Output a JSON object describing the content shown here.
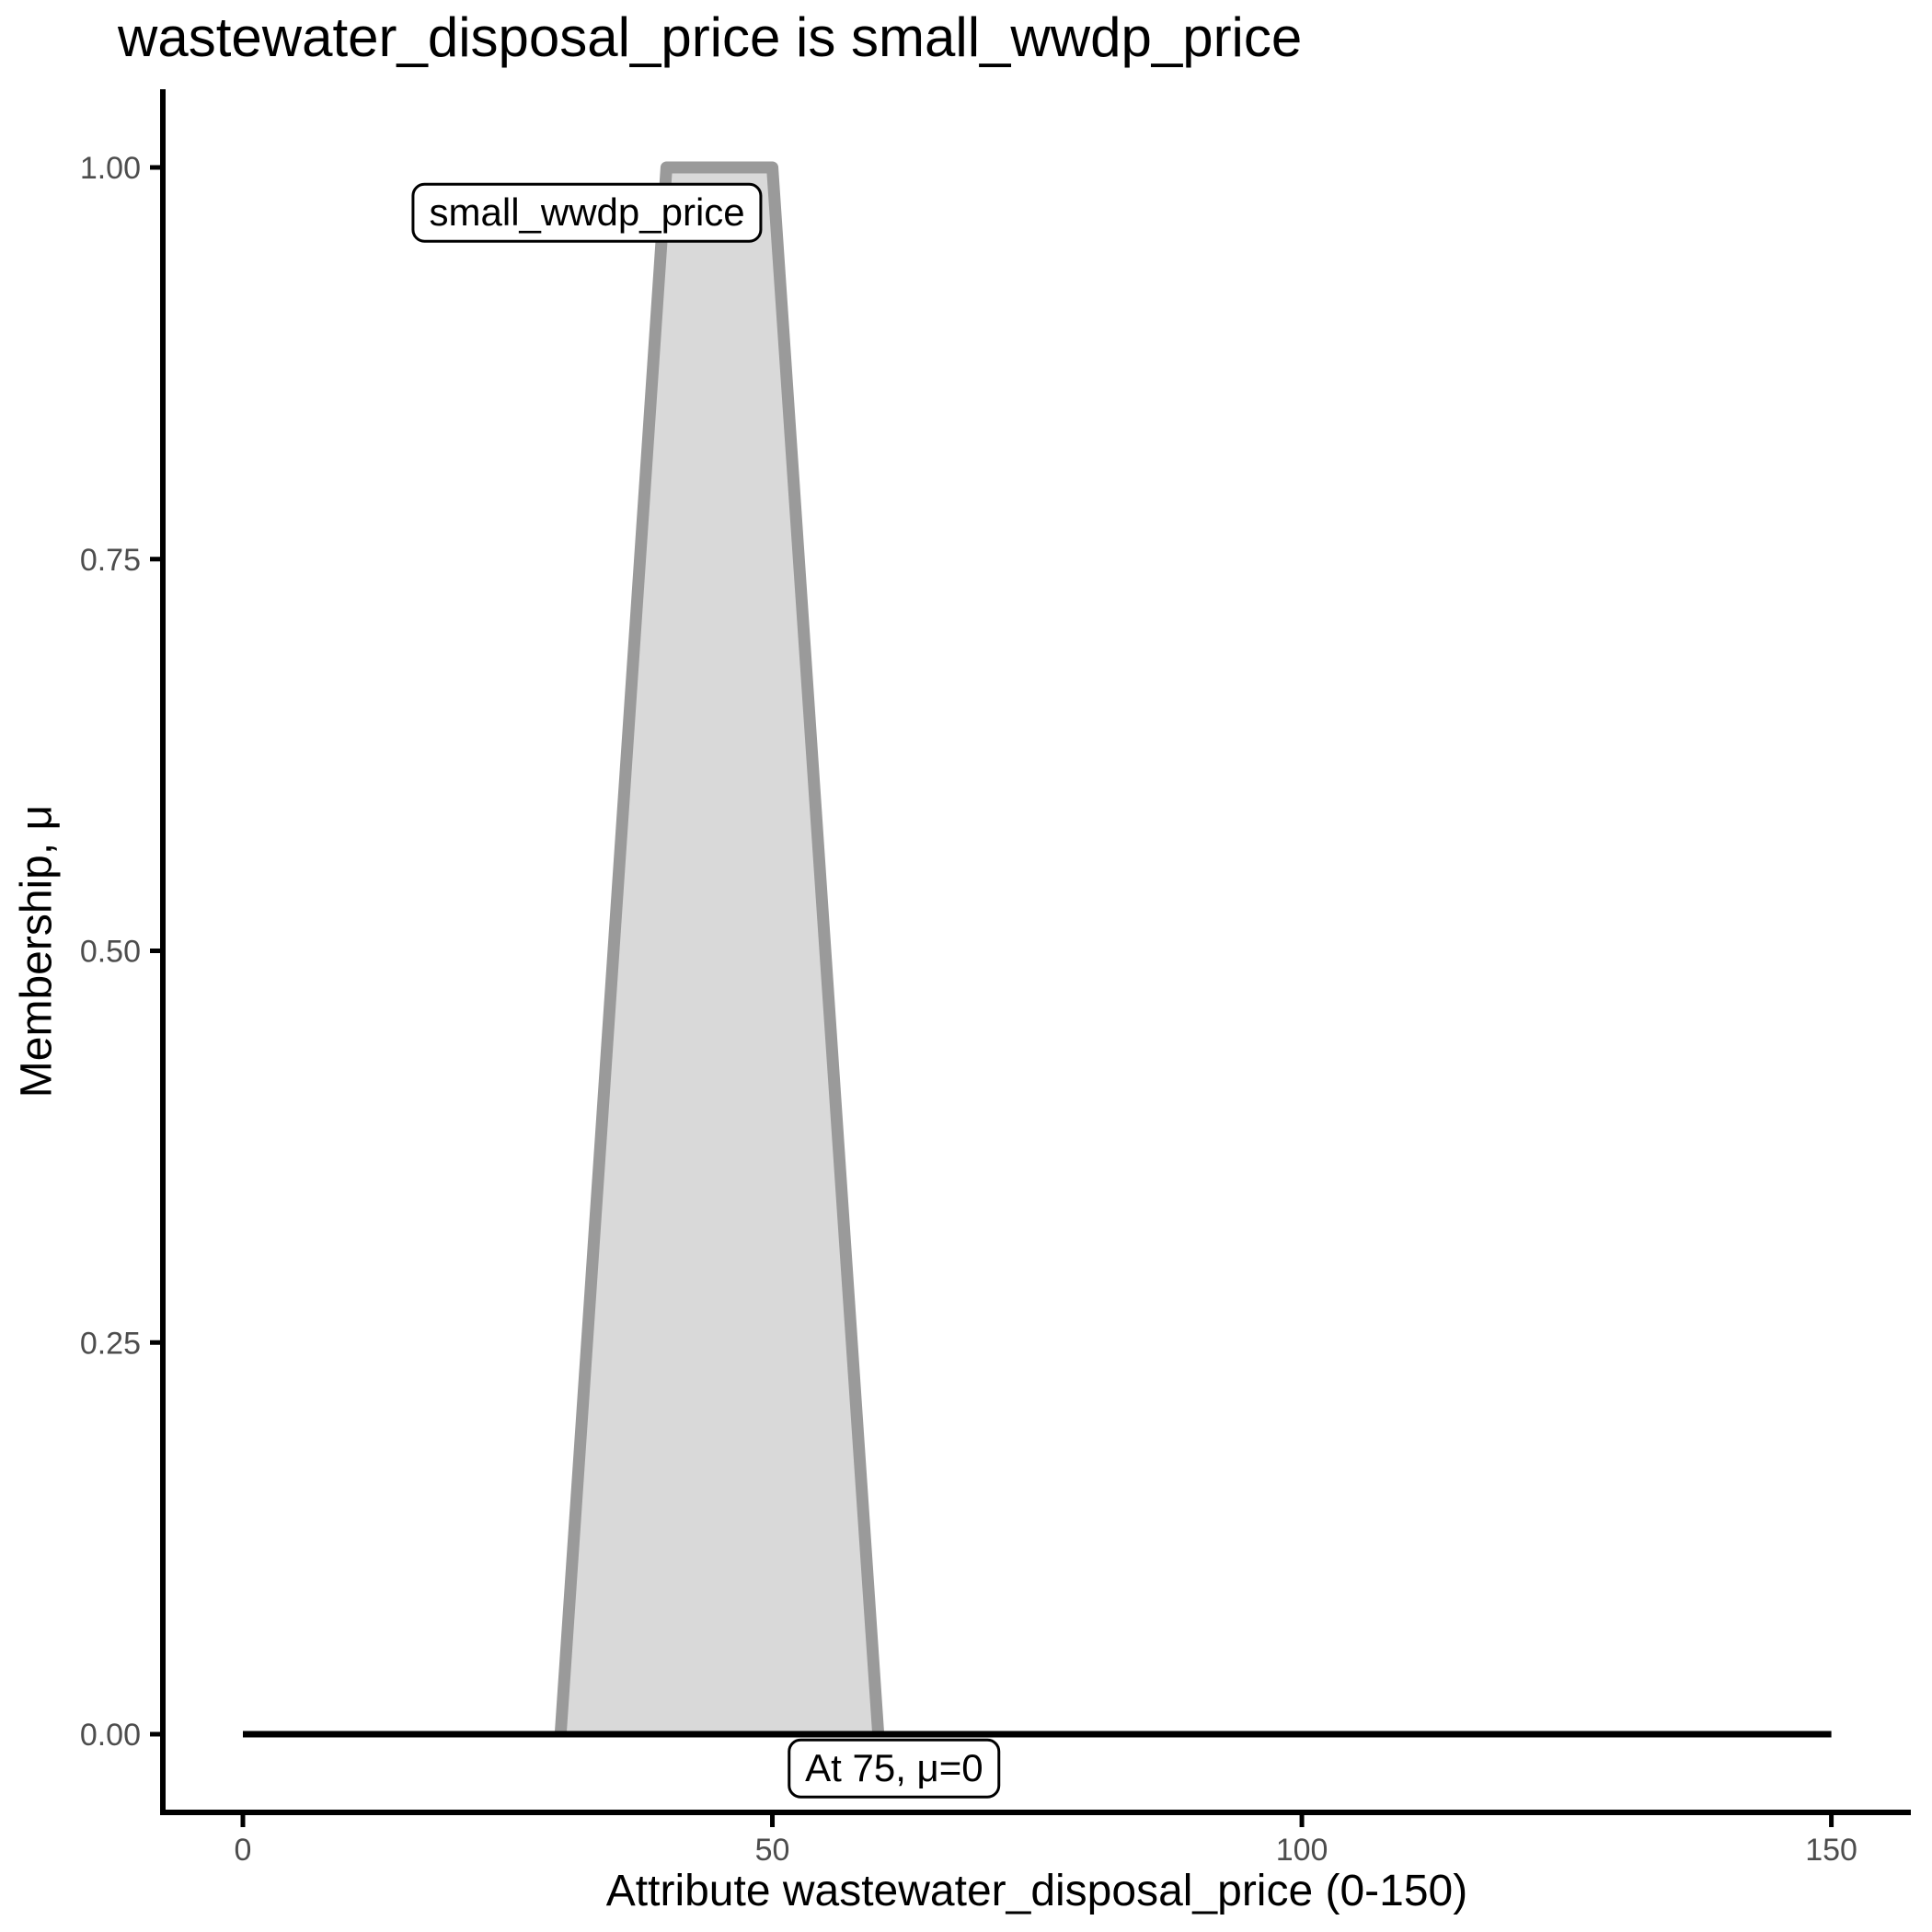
{
  "chart_data": {
    "type": "area",
    "title": "wastewater_disposal_price is small_wwdp_price",
    "xlabel": "Attribute wastewater_disposal_price (0-150)",
    "ylabel": "Membership, μ",
    "xlim": [
      0,
      150
    ],
    "ylim": [
      0,
      1
    ],
    "grid": "off",
    "legend": "none",
    "x_ticks": [
      {
        "value": 0,
        "label": "0"
      },
      {
        "value": 50,
        "label": "50"
      },
      {
        "value": 100,
        "label": "100"
      },
      {
        "value": 150,
        "label": "150"
      }
    ],
    "y_ticks": [
      {
        "value": 0,
        "label": "0.00"
      },
      {
        "value": 0.25,
        "label": "0.25"
      },
      {
        "value": 0.5,
        "label": "0.50"
      },
      {
        "value": 0.75,
        "label": "0.75"
      },
      {
        "value": 1,
        "label": "1.00"
      }
    ],
    "series": [
      {
        "name": "small_wwdp_price_set",
        "kind": "membership-trapezoid",
        "points": [
          [
            30,
            0
          ],
          [
            40,
            1
          ],
          [
            50,
            1
          ],
          [
            60,
            0
          ]
        ],
        "fill": "#d9d9d9",
        "stroke": "#9a9a9a"
      },
      {
        "name": "evaluated_membership_line",
        "kind": "line",
        "points": [
          [
            0,
            0
          ],
          [
            150,
            0
          ]
        ],
        "fill": "none",
        "stroke": "#000000"
      }
    ],
    "annotations": [
      {
        "text": "small_wwdp_price",
        "x": 32.5,
        "mu": 0.971
      },
      {
        "text": "At 75, μ=0",
        "x": 61.5,
        "mu": -0.022
      }
    ],
    "colors": {
      "axis": "#000000",
      "tick_label": "#4d4d4d",
      "set_fill": "#d9d9d9",
      "set_stroke": "#9a9a9a",
      "zero_line": "#000000"
    }
  }
}
